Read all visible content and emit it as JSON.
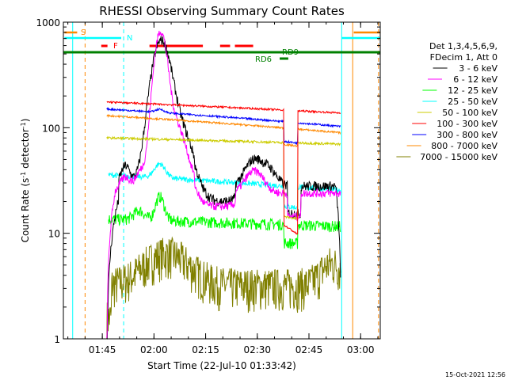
{
  "chart_data": {
    "type": "line",
    "title": "RHESSI Observing Summary Count Rates",
    "xlabel": "Start Time (22-Jul-10 01:33:42)",
    "ylabel_main": "Count Rate (s",
    "ylabel_sup1": "-1",
    "ylabel_mid": " detector",
    "ylabel_sup2": "-1",
    "ylabel_end": ")",
    "y_scale": "log",
    "ylim": [
      1,
      1000
    ],
    "xlim_minutes": [
      0,
      92
    ],
    "x_ticks": [
      {
        "label": "01:45",
        "minute": 11.3
      },
      {
        "label": "02:00",
        "minute": 26.3
      },
      {
        "label": "02:15",
        "minute": 41.3
      },
      {
        "label": "02:30",
        "minute": 56.3
      },
      {
        "label": "02:45",
        "minute": 71.3
      },
      {
        "label": "03:00",
        "minute": 86.3
      }
    ],
    "y_ticks": [
      {
        "label": "1",
        "value": 1
      },
      {
        "label": "10",
        "value": 10
      },
      {
        "label": "100",
        "value": 100
      },
      {
        "label": "1000",
        "value": 1000
      }
    ],
    "legend": {
      "header1": "Det 1,3,4,5,6,9,",
      "header2": "FDecim 1, Att 0",
      "placement": "right"
    },
    "series": [
      {
        "name": "3 - 6 keV",
        "color": "#000000"
      },
      {
        "name": "6 - 12 keV",
        "color": "#ff00ff"
      },
      {
        "name": "12 - 25 keV",
        "color": "#00ff00"
      },
      {
        "name": "25 - 50 keV",
        "color": "#00ffff"
      },
      {
        "name": "50 - 100 keV",
        "color": "#cccc00"
      },
      {
        "name": "100 - 300 keV",
        "color": "#ff0000"
      },
      {
        "name": "300 - 800 keV",
        "color": "#0000ff"
      },
      {
        "name": "800 - 7000 keV",
        "color": "#ff8800"
      },
      {
        "name": "7000 - 15000 keV",
        "color": "#808000"
      }
    ],
    "annotations": [
      {
        "text": "S",
        "color": "#ff8800"
      },
      {
        "text": "N",
        "color": "#00ffff"
      },
      {
        "text": "F",
        "color": "#ff0000"
      },
      {
        "text": "RD9",
        "color": "#008000"
      },
      {
        "text": "RD6",
        "color": "#008000"
      }
    ]
  },
  "timestamp": "15-Oct-2021 12:56"
}
